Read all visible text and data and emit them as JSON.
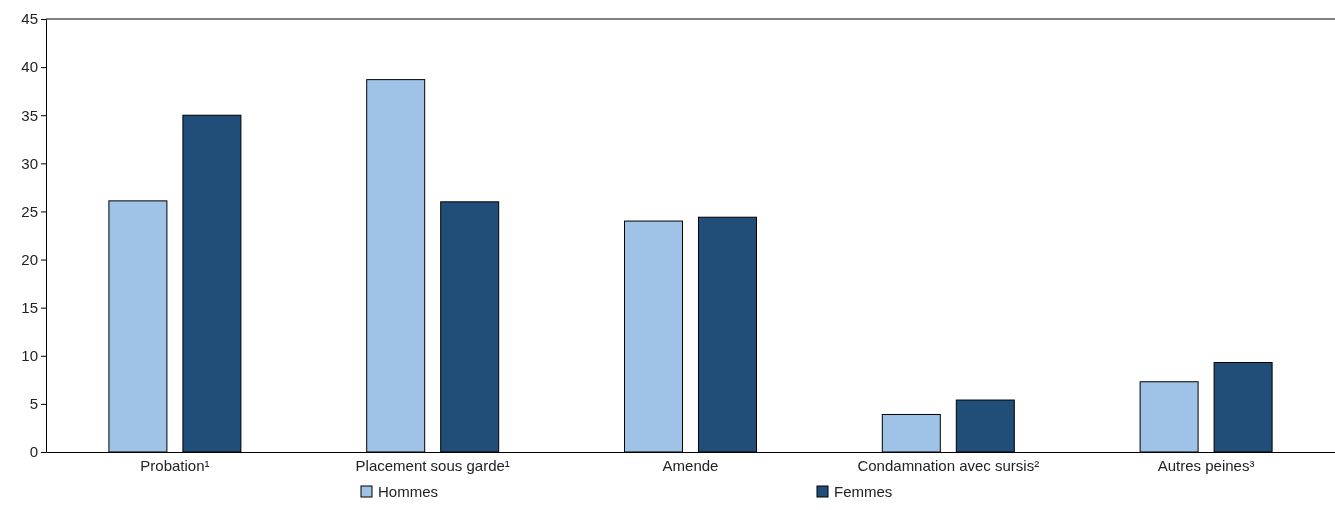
{
  "chart_data": {
    "type": "bar",
    "categories": [
      "Probation¹",
      "Placement sous garde¹",
      "Amende",
      "Condamnation avec sursis²",
      "Autres peines³"
    ],
    "series": [
      {
        "name": "Hommes",
        "color": "#9fc3e7",
        "values": [
          26.1,
          38.7,
          24.0,
          3.9,
          7.3
        ]
      },
      {
        "name": "Femmes",
        "color": "#204e78",
        "values": [
          35.0,
          26.0,
          24.4,
          5.4,
          9.3
        ]
      }
    ],
    "ylim": [
      0,
      45
    ],
    "yticks": [
      0,
      5,
      10,
      15,
      20,
      25,
      30,
      35,
      40,
      45
    ],
    "legend": "bottom"
  }
}
